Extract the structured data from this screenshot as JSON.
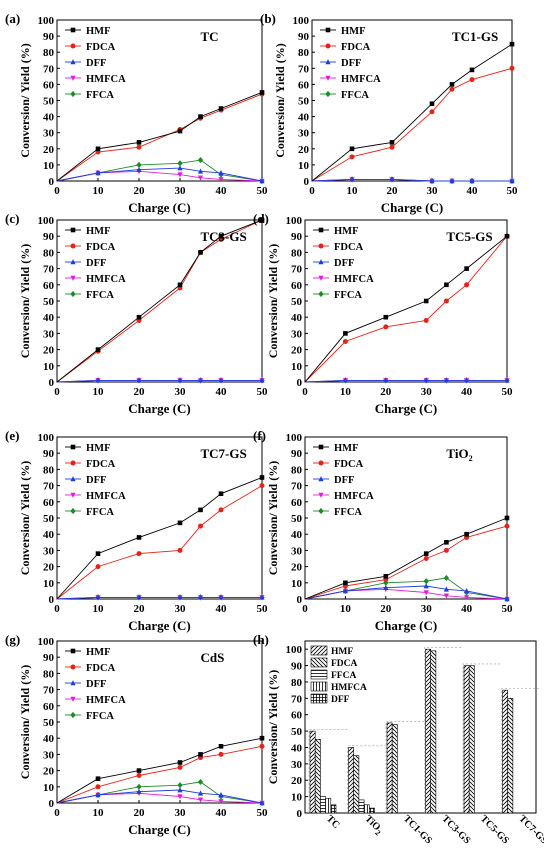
{
  "ylabel": "Conversion/ Yield (%)",
  "xlabel": "Charge (C)",
  "chart_data": [
    {
      "id": "a",
      "panel_label": "(a)",
      "title": "TC",
      "title_sub": "",
      "type": "line",
      "x": [
        0,
        10,
        20,
        30,
        35,
        40,
        50
      ],
      "xlim": [
        0,
        50
      ],
      "ylim": [
        0,
        100
      ],
      "xticks": [
        0,
        10,
        20,
        30,
        40,
        50
      ],
      "yticks": [
        0,
        10,
        20,
        30,
        40,
        50,
        60,
        70,
        80,
        90,
        100
      ],
      "legend": [
        "HMF",
        "FDCA",
        "DFF",
        "HMFCA",
        "FFCA"
      ],
      "series": [
        {
          "name": "HMF",
          "color": "#000000",
          "marker": "square",
          "values": [
            0,
            20,
            24,
            31,
            40,
            45,
            55
          ]
        },
        {
          "name": "FDCA",
          "color": "#e3241b",
          "marker": "circle",
          "values": [
            0,
            18,
            21,
            32,
            39,
            44,
            54
          ]
        },
        {
          "name": "DFF",
          "color": "#1f3fd6",
          "marker": "triangle-up",
          "values": [
            0,
            5,
            7,
            8,
            6,
            5,
            0
          ]
        },
        {
          "name": "HMFCA",
          "color": "#e020d8",
          "marker": "triangle-down",
          "values": [
            0,
            5,
            6,
            4,
            2,
            1,
            0
          ]
        },
        {
          "name": "FFCA",
          "color": "#1f8a2a",
          "marker": "diamond",
          "values": [
            0,
            5,
            10,
            11,
            13,
            4,
            0
          ]
        }
      ]
    },
    {
      "id": "b",
      "panel_label": "(b)",
      "title": "TC1-GS",
      "title_sub": "",
      "type": "line",
      "x": [
        0,
        10,
        20,
        30,
        35,
        40,
        50
      ],
      "xlim": [
        0,
        50
      ],
      "ylim": [
        0,
        100
      ],
      "xticks": [
        0,
        10,
        20,
        30,
        40,
        50
      ],
      "yticks": [
        0,
        10,
        20,
        30,
        40,
        50,
        60,
        70,
        80,
        90,
        100
      ],
      "legend": [
        "HMF",
        "FDCA",
        "DFF",
        "HMFCA",
        "FFCA"
      ],
      "series": [
        {
          "name": "HMF",
          "color": "#000000",
          "marker": "square",
          "values": [
            0,
            20,
            24,
            48,
            60,
            69,
            85
          ]
        },
        {
          "name": "FDCA",
          "color": "#e3241b",
          "marker": "circle",
          "values": [
            0,
            15,
            21,
            43,
            57,
            63,
            70
          ]
        },
        {
          "name": "DFF",
          "color": "#1f3fd6",
          "marker": "triangle-up",
          "values": [
            0,
            1,
            1,
            0,
            0,
            0,
            0
          ]
        },
        {
          "name": "HMFCA",
          "color": "#e020d8",
          "marker": "triangle-down",
          "values": [
            0,
            1,
            1,
            0,
            0,
            0,
            0
          ]
        },
        {
          "name": "FFCA",
          "color": "#1f8a2a",
          "marker": "diamond",
          "values": [
            0,
            1,
            1,
            0,
            0,
            0,
            0
          ]
        }
      ]
    },
    {
      "id": "c",
      "panel_label": "(c)",
      "title": "TC3-GS",
      "title_sub": "",
      "type": "line",
      "x": [
        0,
        10,
        20,
        30,
        35,
        40,
        50
      ],
      "xlim": [
        0,
        50
      ],
      "ylim": [
        0,
        100
      ],
      "xticks": [
        0,
        10,
        20,
        30,
        40,
        50
      ],
      "yticks": [
        0,
        10,
        20,
        30,
        40,
        50,
        60,
        70,
        80,
        90,
        100
      ],
      "legend": [
        "HMF",
        "FDCA",
        "DFF",
        "HMFCA",
        "FFCA"
      ],
      "series": [
        {
          "name": "HMF",
          "color": "#000000",
          "marker": "square",
          "values": [
            0,
            20,
            40,
            60,
            80,
            90,
            100
          ]
        },
        {
          "name": "FDCA",
          "color": "#e3241b",
          "marker": "circle",
          "values": [
            0,
            19,
            38,
            58,
            80,
            88,
            100
          ]
        },
        {
          "name": "DFF",
          "color": "#1f3fd6",
          "marker": "triangle-up",
          "values": [
            0,
            1,
            1,
            1,
            1,
            1,
            1
          ]
        },
        {
          "name": "HMFCA",
          "color": "#e020d8",
          "marker": "triangle-down",
          "values": [
            0,
            1,
            1,
            1,
            1,
            1,
            1
          ]
        },
        {
          "name": "FFCA",
          "color": "#1f8a2a",
          "marker": "diamond",
          "values": [
            0,
            1,
            1,
            1,
            1,
            1,
            1
          ]
        }
      ]
    },
    {
      "id": "d",
      "panel_label": "(d)",
      "title": "TC5-GS",
      "title_sub": "",
      "type": "line",
      "x": [
        0,
        10,
        20,
        30,
        35,
        40,
        50
      ],
      "xlim": [
        0,
        50
      ],
      "ylim": [
        0,
        100
      ],
      "xticks": [
        0,
        10,
        20,
        30,
        40,
        50
      ],
      "yticks": [
        0,
        10,
        20,
        30,
        40,
        50,
        60,
        70,
        80,
        90,
        100
      ],
      "legend": [
        "HMF",
        "FDCA",
        "DFF",
        "HMFCA",
        "FFCA"
      ],
      "series": [
        {
          "name": "HMF",
          "color": "#000000",
          "marker": "square",
          "values": [
            0,
            30,
            40,
            50,
            60,
            70,
            90
          ]
        },
        {
          "name": "FDCA",
          "color": "#e3241b",
          "marker": "circle",
          "values": [
            0,
            25,
            34,
            38,
            50,
            60,
            90
          ]
        },
        {
          "name": "DFF",
          "color": "#1f3fd6",
          "marker": "triangle-up",
          "values": [
            0,
            1,
            1,
            1,
            1,
            1,
            1
          ]
        },
        {
          "name": "HMFCA",
          "color": "#e020d8",
          "marker": "triangle-down",
          "values": [
            0,
            1,
            1,
            1,
            1,
            1,
            1
          ]
        },
        {
          "name": "FFCA",
          "color": "#1f8a2a",
          "marker": "diamond",
          "values": [
            0,
            1,
            1,
            1,
            1,
            1,
            1
          ]
        }
      ]
    },
    {
      "id": "e",
      "panel_label": "(e)",
      "title": "TC7-GS",
      "title_sub": "",
      "type": "line",
      "x": [
        0,
        10,
        20,
        30,
        35,
        40,
        50
      ],
      "xlim": [
        0,
        50
      ],
      "ylim": [
        0,
        100
      ],
      "xticks": [
        0,
        10,
        20,
        30,
        40,
        50
      ],
      "yticks": [
        0,
        10,
        20,
        30,
        40,
        50,
        60,
        70,
        80,
        90,
        100
      ],
      "legend": [
        "HMF",
        "FDCA",
        "DFF",
        "HMFCA",
        "FFCA"
      ],
      "series": [
        {
          "name": "HMF",
          "color": "#000000",
          "marker": "square",
          "values": [
            0,
            28,
            38,
            47,
            55,
            65,
            75
          ]
        },
        {
          "name": "FDCA",
          "color": "#e3241b",
          "marker": "circle",
          "values": [
            0,
            20,
            28,
            30,
            45,
            55,
            70
          ]
        },
        {
          "name": "DFF",
          "color": "#1f3fd6",
          "marker": "triangle-up",
          "values": [
            0,
            1,
            1,
            1,
            1,
            1,
            1
          ]
        },
        {
          "name": "HMFCA",
          "color": "#e020d8",
          "marker": "triangle-down",
          "values": [
            0,
            1,
            1,
            1,
            1,
            1,
            1
          ]
        },
        {
          "name": "FFCA",
          "color": "#1f8a2a",
          "marker": "diamond",
          "values": [
            0,
            1,
            1,
            1,
            1,
            1,
            1
          ]
        }
      ]
    },
    {
      "id": "f",
      "panel_label": "(f)",
      "title": "TiO",
      "title_sub": "2",
      "type": "line",
      "x": [
        0,
        10,
        20,
        30,
        35,
        40,
        50
      ],
      "xlim": [
        0,
        50
      ],
      "ylim": [
        0,
        100
      ],
      "xticks": [
        0,
        10,
        20,
        30,
        40,
        50
      ],
      "yticks": [
        0,
        10,
        20,
        30,
        40,
        50,
        60,
        70,
        80,
        90,
        100
      ],
      "legend": [
        "HMF",
        "FDCA",
        "DFF",
        "HMFCA",
        "FFCA"
      ],
      "series": [
        {
          "name": "HMF",
          "color": "#000000",
          "marker": "square",
          "values": [
            0,
            10,
            14,
            28,
            35,
            40,
            50
          ]
        },
        {
          "name": "FDCA",
          "color": "#e3241b",
          "marker": "circle",
          "values": [
            0,
            8,
            12,
            25,
            30,
            38,
            45
          ]
        },
        {
          "name": "DFF",
          "color": "#1f3fd6",
          "marker": "triangle-up",
          "values": [
            0,
            5,
            7,
            8,
            6,
            5,
            0
          ]
        },
        {
          "name": "HMFCA",
          "color": "#e020d8",
          "marker": "triangle-down",
          "values": [
            0,
            5,
            6,
            4,
            2,
            1,
            0
          ]
        },
        {
          "name": "FFCA",
          "color": "#1f8a2a",
          "marker": "diamond",
          "values": [
            0,
            5,
            10,
            11,
            13,
            4,
            0
          ]
        }
      ]
    },
    {
      "id": "g",
      "panel_label": "(g)",
      "title": "CdS",
      "title_sub": "",
      "type": "line",
      "x": [
        0,
        10,
        20,
        30,
        35,
        40,
        50
      ],
      "xlim": [
        0,
        50
      ],
      "ylim": [
        0,
        100
      ],
      "xticks": [
        0,
        10,
        20,
        30,
        40,
        50
      ],
      "yticks": [
        0,
        10,
        20,
        30,
        40,
        50,
        60,
        70,
        80,
        90,
        100
      ],
      "legend": [
        "HMF",
        "FDCA",
        "DFF",
        "HMFCA",
        "FFCA"
      ],
      "series": [
        {
          "name": "HMF",
          "color": "#000000",
          "marker": "square",
          "values": [
            0,
            15,
            20,
            25,
            30,
            35,
            40
          ]
        },
        {
          "name": "FDCA",
          "color": "#e3241b",
          "marker": "circle",
          "values": [
            0,
            10,
            17,
            22,
            28,
            30,
            35
          ]
        },
        {
          "name": "DFF",
          "color": "#1f3fd6",
          "marker": "triangle-up",
          "values": [
            0,
            5,
            7,
            8,
            6,
            5,
            0
          ]
        },
        {
          "name": "HMFCA",
          "color": "#e020d8",
          "marker": "triangle-down",
          "values": [
            0,
            5,
            6,
            4,
            2,
            1,
            0
          ]
        },
        {
          "name": "FFCA",
          "color": "#1f8a2a",
          "marker": "diamond",
          "values": [
            0,
            5,
            10,
            11,
            13,
            4,
            0
          ]
        }
      ]
    },
    {
      "id": "h",
      "panel_label": "(h)",
      "title": "",
      "type": "bar",
      "categories": [
        "TC",
        "TiO2",
        "TC1-GS",
        "TC3-GS",
        "TC5-GS",
        "TC7-GS"
      ],
      "category_labels": [
        {
          "main": "TC",
          "sub": ""
        },
        {
          "main": "TiO",
          "sub": "2"
        },
        {
          "main": "TC1-GS",
          "sub": ""
        },
        {
          "main": "TC3-GS",
          "sub": ""
        },
        {
          "main": "TC5-GS",
          "sub": ""
        },
        {
          "main": "TC7-GS",
          "sub": ""
        }
      ],
      "ylim": [
        0,
        105
      ],
      "yticks": [
        0,
        10,
        20,
        30,
        40,
        50,
        60,
        70,
        80,
        90,
        100
      ],
      "legend": [
        "HMF",
        "FDCA",
        "FFCA",
        "HMFCA",
        "DFF"
      ],
      "series": [
        {
          "name": "HMF",
          "pattern": "diag-fwd",
          "values": [
            50,
            40,
            55,
            100,
            90,
            75
          ]
        },
        {
          "name": "FDCA",
          "pattern": "diag-back",
          "values": [
            45,
            35,
            54,
            99,
            90,
            70
          ]
        },
        {
          "name": "FFCA",
          "pattern": "horizontal",
          "values": [
            10,
            8,
            0,
            0,
            0,
            0
          ]
        },
        {
          "name": "HMFCA",
          "pattern": "vertical",
          "values": [
            9,
            5,
            0,
            0,
            0,
            0
          ]
        },
        {
          "name": "DFF",
          "pattern": "grid",
          "values": [
            5,
            3,
            0,
            0,
            0,
            0
          ]
        }
      ]
    }
  ]
}
